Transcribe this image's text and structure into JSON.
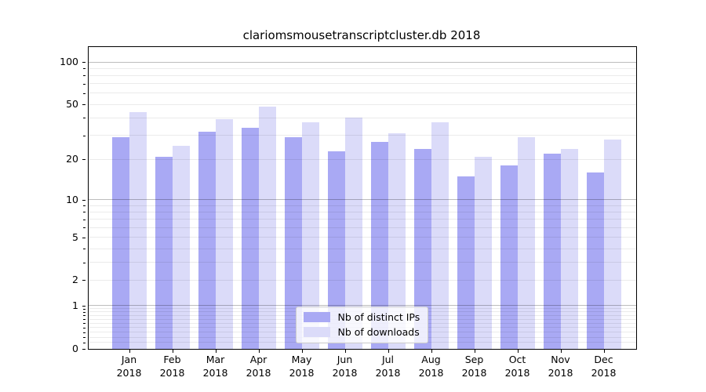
{
  "chart_data": {
    "type": "bar",
    "title": "clariomsmousetranscriptcluster.db 2018",
    "y_scale": "log(1+y)",
    "grid": "both",
    "legend_position": "lower center",
    "categories": [
      "Jan",
      "Feb",
      "Mar",
      "Apr",
      "May",
      "Jun",
      "Jul",
      "Aug",
      "Sep",
      "Oct",
      "Nov",
      "Dec"
    ],
    "x_year": "2018",
    "series": [
      {
        "name": "Nb of distinct IPs",
        "color": "#a9a9f4",
        "values": [
          29,
          21,
          32,
          34,
          29,
          23,
          27,
          24,
          15,
          18,
          22,
          16
        ]
      },
      {
        "name": "Nb of downloads",
        "color": "#dbdbf9",
        "values": [
          44,
          25,
          39,
          48,
          37,
          40,
          31,
          37,
          21,
          29,
          24,
          28
        ]
      }
    ],
    "y_ticks": {
      "labels": [
        "100",
        "50",
        "20",
        "10",
        "5",
        "2",
        "1",
        "0"
      ],
      "values": [
        100,
        50,
        20,
        10,
        5,
        2,
        1,
        0
      ]
    },
    "ylim": [
      0,
      128
    ]
  },
  "colors": {
    "bar_ips": "#a9a9f4",
    "bar_downloads": "#dbdbf9",
    "axis": "#000000",
    "grid_major": "rgba(0,0,0,0.26)",
    "grid_minor": "rgba(0,0,0,0.08)",
    "legend_border": "#cccccc"
  }
}
